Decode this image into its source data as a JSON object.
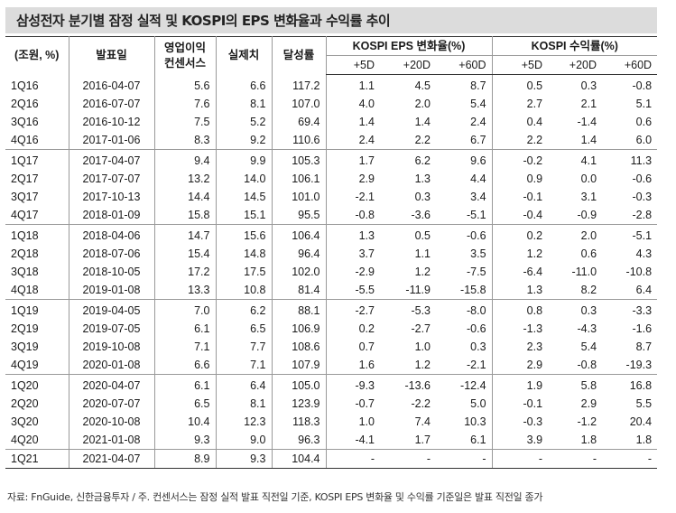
{
  "title": "삼성전자 분기별 잠정 실적 및 KOSPI의 EPS 변화율과 수익률 추이",
  "headers": {
    "unit": "(조원, %)",
    "date": "발표일",
    "consensus_line1": "영업이익",
    "consensus_line2": "컨센서스",
    "actual": "실제치",
    "achievement": "달성률",
    "eps_group": "KOSPI EPS 변화율(%)",
    "return_group": "KOSPI 수익률(%)",
    "sub": [
      "+5D",
      "+20D",
      "+60D",
      "+5D",
      "+20D",
      "+60D"
    ]
  },
  "groups": [
    {
      "rows": [
        [
          "1Q16",
          "2016-04-07",
          "5.6",
          "6.6",
          "117.2",
          "1.1",
          "4.5",
          "8.7",
          "0.5",
          "0.3",
          "-0.8"
        ],
        [
          "2Q16",
          "2016-07-07",
          "7.6",
          "8.1",
          "107.0",
          "4.0",
          "2.0",
          "5.4",
          "2.7",
          "2.1",
          "5.1"
        ],
        [
          "3Q16",
          "2016-10-12",
          "7.5",
          "5.2",
          "69.4",
          "1.4",
          "1.4",
          "2.4",
          "0.4",
          "-1.4",
          "0.6"
        ],
        [
          "4Q16",
          "2017-01-06",
          "8.3",
          "9.2",
          "110.6",
          "2.4",
          "2.2",
          "6.7",
          "2.2",
          "1.4",
          "6.0"
        ]
      ]
    },
    {
      "rows": [
        [
          "1Q17",
          "2017-04-07",
          "9.4",
          "9.9",
          "105.3",
          "1.7",
          "6.2",
          "9.6",
          "-0.2",
          "4.1",
          "11.3"
        ],
        [
          "2Q17",
          "2017-07-07",
          "13.2",
          "14.0",
          "106.1",
          "2.9",
          "1.3",
          "4.4",
          "0.9",
          "0.0",
          "-0.6"
        ],
        [
          "3Q17",
          "2017-10-13",
          "14.4",
          "14.5",
          "101.0",
          "-2.1",
          "0.3",
          "3.4",
          "-0.1",
          "3.1",
          "-0.3"
        ],
        [
          "4Q17",
          "2018-01-09",
          "15.8",
          "15.1",
          "95.5",
          "-0.8",
          "-3.6",
          "-5.1",
          "-0.4",
          "-0.9",
          "-2.8"
        ]
      ]
    },
    {
      "rows": [
        [
          "1Q18",
          "2018-04-06",
          "14.7",
          "15.6",
          "106.4",
          "1.3",
          "0.5",
          "-0.6",
          "0.2",
          "2.0",
          "-5.1"
        ],
        [
          "2Q18",
          "2018-07-06",
          "15.4",
          "14.8",
          "96.4",
          "3.7",
          "1.1",
          "3.5",
          "1.2",
          "0.6",
          "4.3"
        ],
        [
          "3Q18",
          "2018-10-05",
          "17.2",
          "17.5",
          "102.0",
          "-2.9",
          "1.2",
          "-7.5",
          "-6.4",
          "-11.0",
          "-10.8"
        ],
        [
          "4Q18",
          "2019-01-08",
          "13.3",
          "10.8",
          "81.4",
          "-5.5",
          "-11.9",
          "-15.8",
          "1.3",
          "8.2",
          "6.4"
        ]
      ]
    },
    {
      "rows": [
        [
          "1Q19",
          "2019-04-05",
          "7.0",
          "6.2",
          "88.1",
          "-2.7",
          "-5.3",
          "-8.0",
          "0.8",
          "0.3",
          "-3.3"
        ],
        [
          "2Q19",
          "2019-07-05",
          "6.1",
          "6.5",
          "106.9",
          "0.2",
          "-2.7",
          "-0.6",
          "-1.3",
          "-4.3",
          "-1.6"
        ],
        [
          "3Q19",
          "2019-10-08",
          "7.1",
          "7.7",
          "108.6",
          "0.7",
          "1.0",
          "0.3",
          "2.3",
          "5.4",
          "8.7"
        ],
        [
          "4Q19",
          "2020-01-08",
          "6.6",
          "7.1",
          "107.9",
          "1.6",
          "1.2",
          "-2.1",
          "2.9",
          "-0.8",
          "-19.3"
        ]
      ]
    },
    {
      "rows": [
        [
          "1Q20",
          "2020-04-07",
          "6.1",
          "6.4",
          "105.0",
          "-9.3",
          "-13.6",
          "-12.4",
          "1.9",
          "5.8",
          "16.8"
        ],
        [
          "2Q20",
          "2020-07-07",
          "6.5",
          "8.1",
          "123.9",
          "-0.7",
          "-2.2",
          "5.0",
          "-0.1",
          "2.9",
          "5.5"
        ],
        [
          "3Q20",
          "2020-10-08",
          "10.4",
          "12.3",
          "118.3",
          "1.0",
          "7.4",
          "10.3",
          "-0.3",
          "-1.2",
          "20.4"
        ],
        [
          "4Q20",
          "2021-01-08",
          "9.3",
          "9.0",
          "96.3",
          "-4.1",
          "1.7",
          "6.1",
          "3.9",
          "1.8",
          "1.8"
        ]
      ]
    },
    {
      "rows": [
        [
          "1Q21",
          "2021-04-07",
          "8.9",
          "9.3",
          "104.4",
          "-",
          "-",
          "-",
          "-",
          "-",
          "-"
        ]
      ]
    }
  ],
  "source": "자료: FnGuide, 신한금융투자 / 주. 컨센서스는 잠정 실적 발표 직전일 기준, KOSPI EPS 변화율 및 수익률 기준일은 발표 직전일 종가"
}
